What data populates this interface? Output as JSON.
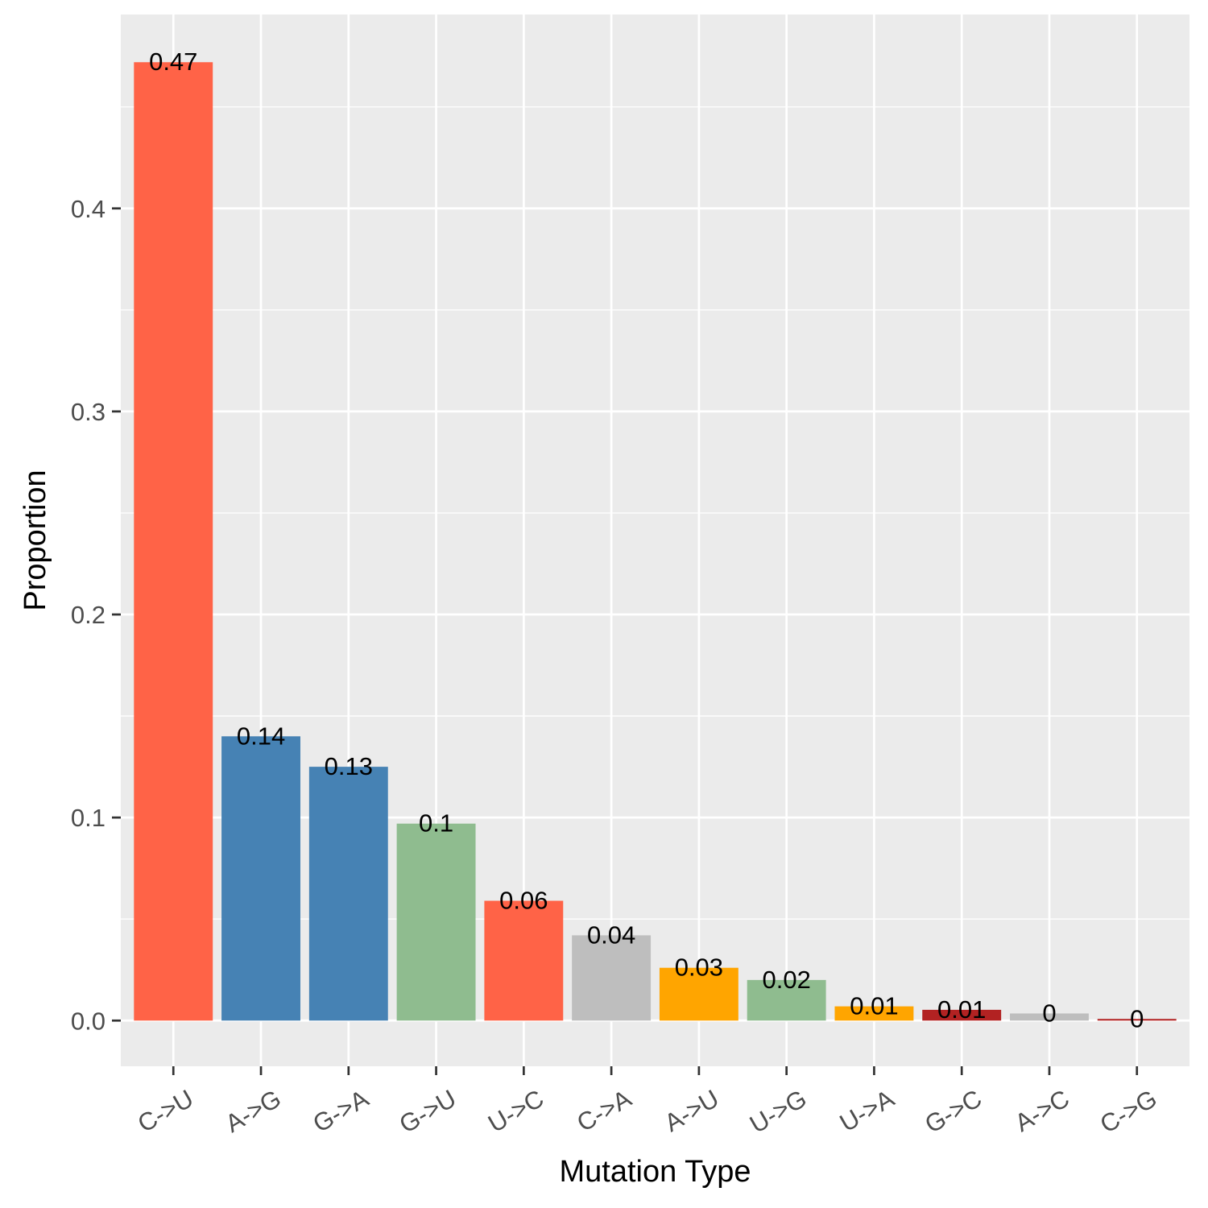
{
  "chart_data": {
    "type": "bar",
    "xlabel": "Mutation Type",
    "ylabel": "Proportion",
    "categories": [
      "C->U",
      "A->G",
      "G->A",
      "G->U",
      "U->C",
      "C->A",
      "A->U",
      "U->G",
      "U->A",
      "G->C",
      "A->C",
      "C->G"
    ],
    "values": [
      0.472,
      0.14,
      0.125,
      0.097,
      0.059,
      0.042,
      0.026,
      0.02,
      0.007,
      0.0053,
      0.0035,
      0.0008
    ],
    "value_labels": [
      "0.47",
      "0.14",
      "0.13",
      "0.1",
      "0.06",
      "0.04",
      "0.03",
      "0.02",
      "0.01",
      "0.01",
      "0",
      "0"
    ],
    "colors": [
      "#FF6347",
      "#4682B4",
      "#4682B4",
      "#8FBC8F",
      "#FF6347",
      "#BEBEBE",
      "#FFA500",
      "#8FBC8F",
      "#FFA500",
      "#B22222",
      "#BEBEBE",
      "#B22222"
    ],
    "yticks": [
      0.0,
      0.1,
      0.2,
      0.3,
      0.4
    ],
    "ytick_labels": [
      "0.0",
      "0.1",
      "0.2",
      "0.3",
      "0.4"
    ],
    "ylim": [
      -0.0225,
      0.4955
    ],
    "grid": true,
    "panel_background": "#EBEBEB",
    "gridline_color": "#FFFFFF"
  }
}
